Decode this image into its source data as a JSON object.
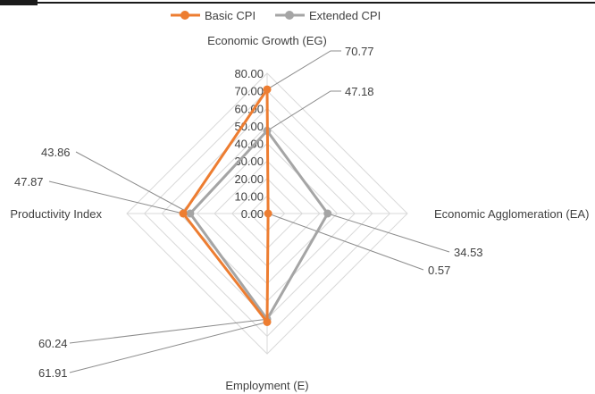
{
  "chart_data": {
    "type": "radar",
    "axes": [
      "Economic Growth (EG)",
      "Economic Agglomeration (EA)",
      "Employment (E)",
      "Productivity Index"
    ],
    "ticks": [
      "0.00",
      "10.00",
      "20.00",
      "30.00",
      "40.00",
      "50.00",
      "60.00",
      "70.00",
      "80.00"
    ],
    "rlim": [
      0,
      80
    ],
    "legend_position": "top",
    "series": [
      {
        "name": "Basic CPI",
        "color": "#ED7D31",
        "values": [
          70.77,
          0.57,
          61.91,
          47.87
        ],
        "labels": [
          "70.77",
          "0.57",
          "61.91",
          "47.87"
        ]
      },
      {
        "name": "Extended CPI",
        "color": "#A5A5A5",
        "values": [
          47.18,
          34.53,
          60.24,
          43.86
        ],
        "labels": [
          "47.18",
          "34.53",
          "60.24",
          "43.86"
        ]
      }
    ],
    "grid": true
  }
}
